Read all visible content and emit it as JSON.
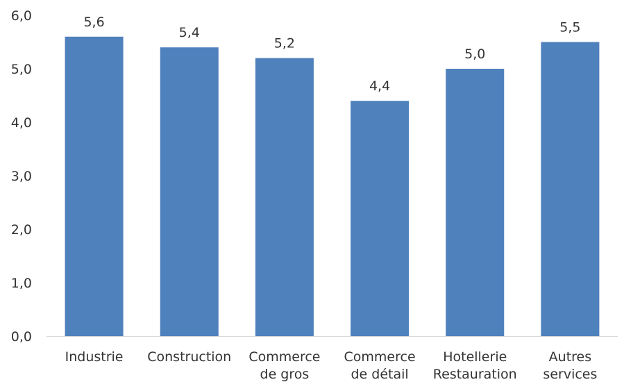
{
  "chart_data": {
    "type": "bar",
    "categories": [
      [
        "Industrie"
      ],
      [
        "Construction"
      ],
      [
        "Commerce",
        "de gros"
      ],
      [
        "Commerce",
        "de détail"
      ],
      [
        "Hotellerie",
        "Restauration"
      ],
      [
        "Autres",
        "services"
      ]
    ],
    "values": [
      5.6,
      5.4,
      5.2,
      4.4,
      5.0,
      5.5
    ],
    "value_labels": [
      "5,6",
      "5,4",
      "5,2",
      "4,4",
      "5,0",
      "5,5"
    ],
    "ylim": [
      0,
      6
    ],
    "y_ticks": [
      {
        "value": 0,
        "label": "0,0"
      },
      {
        "value": 1,
        "label": "1,0"
      },
      {
        "value": 2,
        "label": "2,0"
      },
      {
        "value": 3,
        "label": "3,0"
      },
      {
        "value": 4,
        "label": "4,0"
      },
      {
        "value": 5,
        "label": "5,0"
      },
      {
        "value": 6,
        "label": "6,0"
      }
    ],
    "grid": false,
    "legend": "none",
    "bar_color": "#4f81bd",
    "axis_color": "#d9d9d9",
    "text_color": "#333333"
  }
}
